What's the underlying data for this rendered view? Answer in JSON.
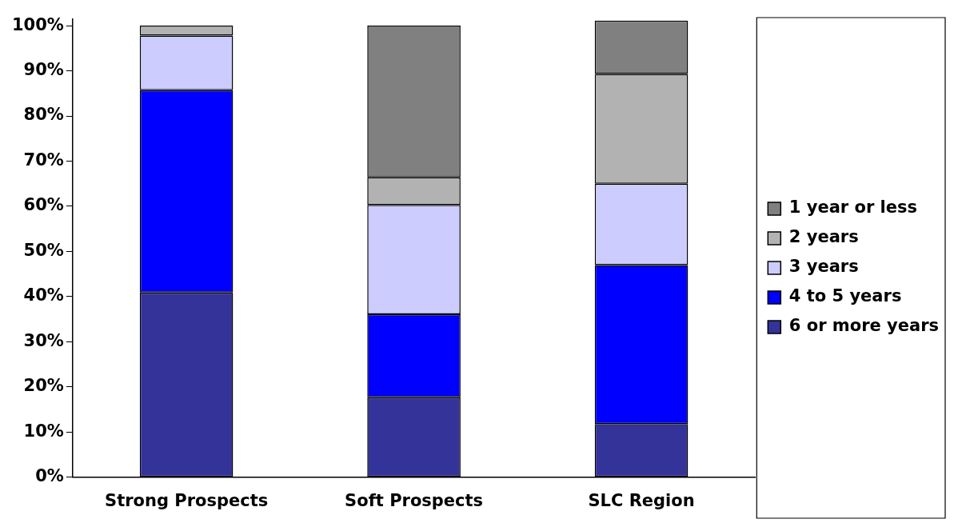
{
  "chart_data": {
    "type": "bar",
    "stacked": true,
    "categories": [
      "Strong Prospects",
      "Soft Prospects",
      "SLC Region"
    ],
    "series": [
      {
        "name": "6 or more years",
        "color": "#333399",
        "values": [
          40.9,
          17.7,
          11.8
        ]
      },
      {
        "name": "4 to 5 years",
        "color": "#0000ff",
        "values": [
          44.8,
          18.4,
          35.2
        ]
      },
      {
        "name": "3 years",
        "color": "#ccccff",
        "values": [
          12.1,
          24.2,
          18.0
        ]
      },
      {
        "name": "2 years",
        "color": "#b2b2b2",
        "values": [
          2.2,
          6.1,
          24.3
        ]
      },
      {
        "name": "1 year or less",
        "color": "#808080",
        "values": [
          0,
          33.6,
          11.8
        ]
      }
    ],
    "ylim": [
      0,
      101.5
    ],
    "yticks": [
      {
        "value": 0,
        "label": "0%"
      },
      {
        "value": 10,
        "label": "10%"
      },
      {
        "value": 20,
        "label": "20%"
      },
      {
        "value": 30,
        "label": "30%"
      },
      {
        "value": 40,
        "label": "40%"
      },
      {
        "value": 50,
        "label": "50%"
      },
      {
        "value": 60,
        "label": "60%"
      },
      {
        "value": 70,
        "label": "70%"
      },
      {
        "value": 80,
        "label": "80%"
      },
      {
        "value": 90,
        "label": "90%"
      },
      {
        "value": 100,
        "label": "100%"
      }
    ],
    "grid": false,
    "legend": "right"
  }
}
